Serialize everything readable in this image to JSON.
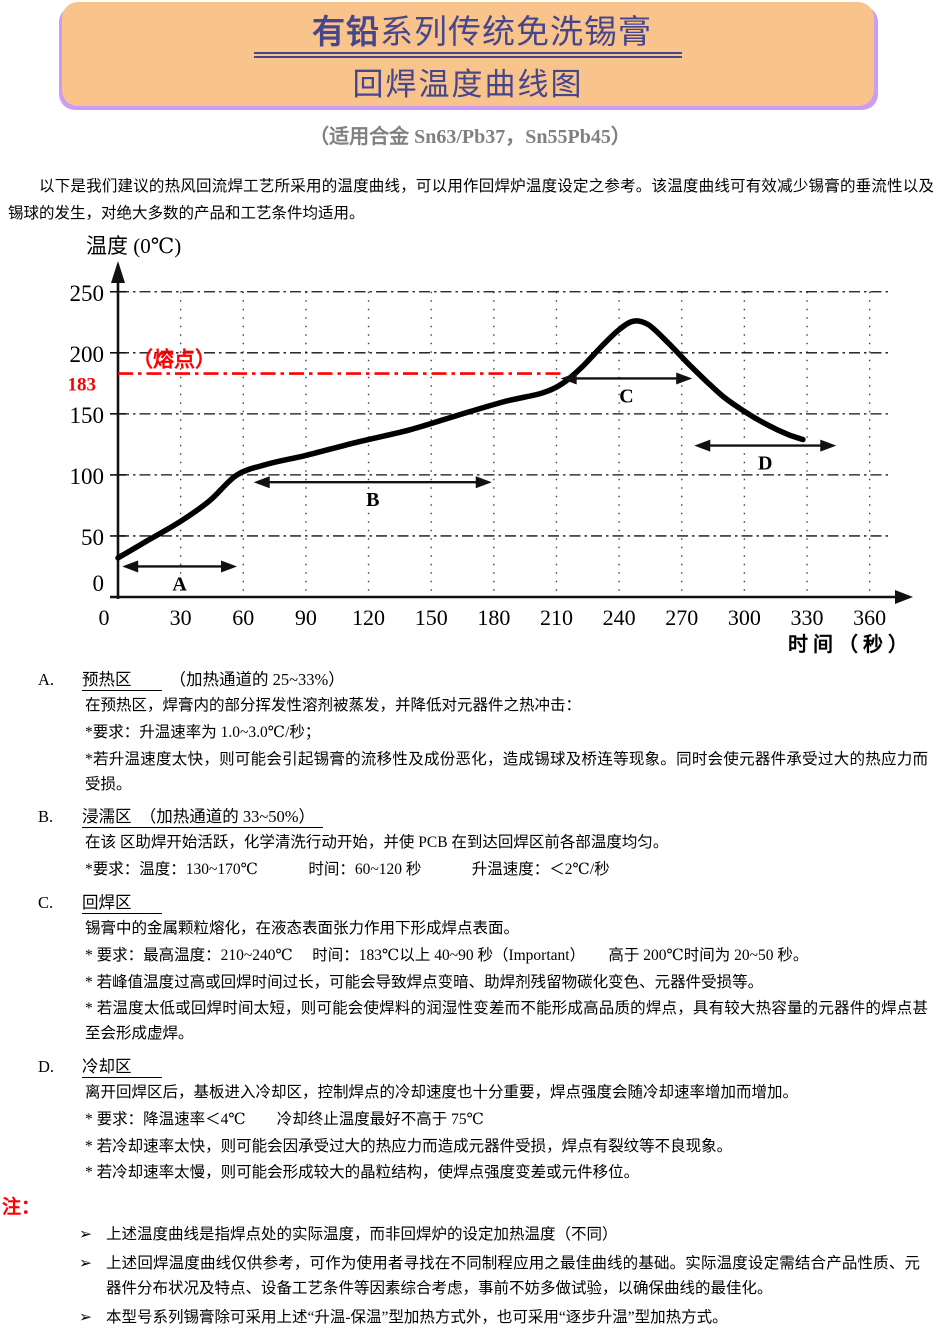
{
  "header": {
    "title_bold": "有铅",
    "title_rest": "系列传统免洗锡膏",
    "title_line2": "回焊温度曲线图",
    "subtitle": "（适用合金 Sn63/Pb37，Sn55Pb45）",
    "banner_bg": "#F9C48C",
    "banner_shadow": "#CD9CF2",
    "title_color": "#46468C"
  },
  "intro": "以下是我们建议的热风回流焊工艺所采用的温度曲线，可以用作回焊炉温度设定之参考。该温度曲线可有效减少锡膏的垂流性以及锡球的发生，对绝大多数的产品和工艺条件均适用。",
  "chart_data": {
    "type": "line",
    "ylabel": "温度 (0℃)",
    "xlabel": "时 间 （ 秒 ）",
    "x_ticks": [
      0,
      30,
      60,
      90,
      120,
      150,
      180,
      210,
      240,
      270,
      300,
      330,
      360
    ],
    "y_ticks": [
      0,
      50,
      100,
      150,
      200,
      250
    ],
    "grid_y_values": [
      50,
      100,
      150,
      200,
      250
    ],
    "xlim": [
      0,
      375
    ],
    "ylim": [
      0,
      268
    ],
    "curve_color": "#000000",
    "peak_temp": 226,
    "peak_time": 247,
    "melting_line": {
      "temp": 183,
      "to_t": 212,
      "label": "（熔点）",
      "tick_label": "183",
      "color": "#FF0000"
    },
    "curve_points": [
      [
        0,
        32
      ],
      [
        14,
        46
      ],
      [
        30,
        62
      ],
      [
        44,
        79
      ],
      [
        57,
        100
      ],
      [
        72,
        109
      ],
      [
        90,
        116
      ],
      [
        115,
        127
      ],
      [
        140,
        137
      ],
      [
        163,
        149
      ],
      [
        185,
        160
      ],
      [
        203,
        167
      ],
      [
        213,
        175
      ],
      [
        222,
        188
      ],
      [
        232,
        206
      ],
      [
        240,
        219
      ],
      [
        247,
        226
      ],
      [
        254,
        223
      ],
      [
        263,
        209
      ],
      [
        272,
        193
      ],
      [
        281,
        178
      ],
      [
        290,
        164
      ],
      [
        300,
        152
      ],
      [
        311,
        141
      ],
      [
        321,
        133
      ],
      [
        328,
        129
      ]
    ],
    "zones": [
      {
        "label": "A",
        "from_t": 2,
        "to_t": 57,
        "temp": 25
      },
      {
        "label": "B",
        "from_t": 65,
        "to_t": 179,
        "temp": 94
      },
      {
        "label": "C",
        "from_t": 212,
        "to_t": 275,
        "temp": 179
      },
      {
        "label": "D",
        "from_t": 276,
        "to_t": 344,
        "temp": 124
      }
    ]
  },
  "sections": [
    {
      "id_label": "A.",
      "title": "预热区",
      "suffix": "（加热通道的 25~33%）",
      "lines": [
        "在预热区，焊膏内的部分挥发性溶剂被蒸发，并降低对元器件之热冲击：",
        "*要求：升温速率为 1.0~3.0℃/秒；",
        "*若升温速度太快，则可能会引起锡膏的流移性及成份恶化，造成锡球及桥连等现象。同时会使元器件承受过大的热应力而受损。"
      ]
    },
    {
      "id_label": "B.",
      "title": "浸濡区　（加热通道的 33~50%）",
      "suffix": "",
      "lines": [
        "在该 区助焊开始活跃，化学清洗行动开始，并使 PCB 在到达回焊区前各部温度均匀。",
        "*要求：温度：130~170℃             时间：60~120 秒             升温速度：＜2℃/秒"
      ]
    },
    {
      "id_label": "C.",
      "title": "回焊区",
      "suffix": "",
      "lines": [
        "锡膏中的金属颗粒熔化，在液态表面张力作用下形成焊点表面。",
        "* 要求：最高温度：210~240℃     时间：183℃以上 40~90 秒（Important）      高于 200℃时间为 20~50 秒。",
        "* 若峰值温度过高或回焊时间过长，可能会导致焊点变暗、助焊剂残留物碳化变色、元器件受损等。",
        "* 若温度太低或回焊时间太短，则可能会使焊料的润湿性变差而不能形成高品质的焊点，具有较大热容量的元器件的焊点甚至会形成虚焊。"
      ]
    },
    {
      "id_label": "D.",
      "title": "冷却区",
      "suffix": "",
      "lines": [
        "离开回焊区后，基板进入冷却区，控制焊点的冷却速度也十分重要，焊点强度会随冷却速率增加而增加。",
        "* 要求：降温速率＜4℃        冷却终止温度最好不高于 75℃",
        "* 若冷却速率太快，则可能会因承受过大的热应力而造成元器件受损，焊点有裂纹等不良现象。",
        "* 若冷却速率太慢，则可能会形成较大的晶粒结构，使焊点强度变差或元件移位。"
      ]
    }
  ],
  "notes": {
    "label": "注：",
    "bullet_glyph": "➢",
    "items": [
      "上述温度曲线是指焊点处的实际温度，而非回焊炉的设定加热温度（不同）",
      "上述回焊温度曲线仅供参考，可作为使用者寻找在不同制程应用之最佳曲线的基础。实际温度设定需结合产品性质、元器件分布状况及特点、设备工艺条件等因素综合考虑，事前不妨多做试验，以确保曲线的最佳化。",
      "本型号系列锡膏除可采用上述“升温-保温”型加热方式外，也可采用“逐步升温”型加热方式。"
    ]
  }
}
